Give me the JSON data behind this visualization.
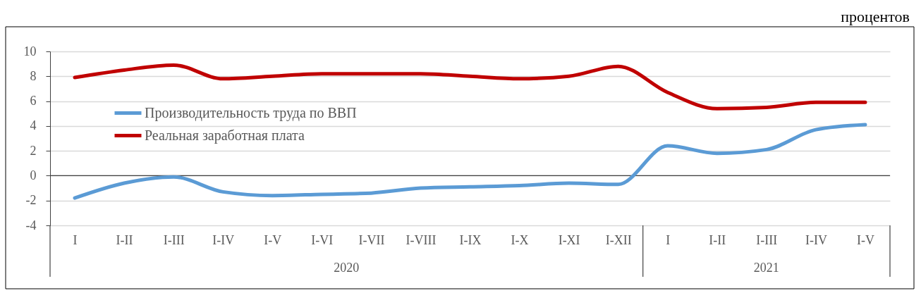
{
  "chart_data": {
    "type": "line",
    "ylabel": "процентов",
    "annotations": [
      "2020",
      "2021"
    ],
    "categories": [
      "I",
      "I-II",
      "I-III",
      "I-IV",
      "I-V",
      "I-VI",
      "I-VII",
      "I-VIII",
      "I-IX",
      "I-X",
      "I-XI",
      "I-XII",
      "I",
      "I-II",
      "I-III",
      "I-IV",
      "I-V"
    ],
    "series": [
      {
        "name": "Производительность труда по ВВП",
        "color": "#5b9bd5",
        "values": [
          -1.8,
          -0.6,
          -0.1,
          -1.3,
          -1.6,
          -1.5,
          -1.4,
          -1.0,
          -0.9,
          -0.8,
          -0.6,
          -0.7,
          2.4,
          1.8,
          2.1,
          3.7,
          4.1
        ]
      },
      {
        "name": "Реальная заработная  плата",
        "color": "#c00000",
        "values": [
          7.9,
          8.5,
          8.9,
          7.8,
          8.0,
          8.2,
          8.2,
          8.2,
          8.0,
          7.8,
          8.0,
          8.8,
          6.7,
          5.4,
          5.5,
          5.9,
          5.9
        ]
      }
    ],
    "ylim": [
      -4,
      10
    ],
    "yticks": [
      -4,
      -2,
      0,
      2,
      4,
      6,
      8,
      10
    ],
    "grid": "y",
    "legend": "left",
    "ref_lines": [
      {
        "axis": "y",
        "value": 0,
        "color": "#404040"
      }
    ]
  }
}
